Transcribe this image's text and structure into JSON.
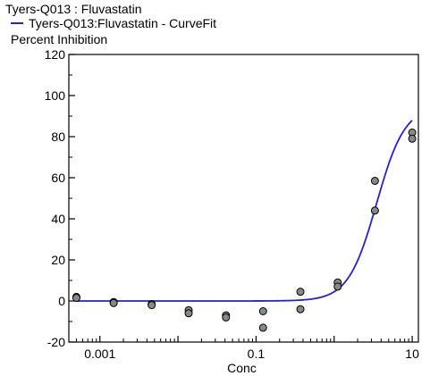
{
  "chart_data": {
    "type": "scatter",
    "title": "Tyers-Q013 : Fluvastatin",
    "ylabel": "Percent Inhibition",
    "xlabel": "Conc",
    "x_scale": "log",
    "xlim": [
      0.0004,
      12
    ],
    "ylim": [
      -20,
      120
    ],
    "x_ticks": [
      {
        "value": 0.001,
        "label": "0.001"
      },
      {
        "value": 0.1,
        "label": "0.1"
      },
      {
        "value": 10,
        "label": "10"
      }
    ],
    "y_ticks": [
      {
        "value": -20,
        "label": "-20"
      },
      {
        "value": 0,
        "label": "0"
      },
      {
        "value": 20,
        "label": "20"
      },
      {
        "value": 40,
        "label": "40"
      },
      {
        "value": 60,
        "label": "60"
      },
      {
        "value": 80,
        "label": "80"
      },
      {
        "value": 100,
        "label": "100"
      },
      {
        "value": 120,
        "label": "120"
      }
    ],
    "legend": {
      "placement": "top-left",
      "entries": [
        "Tyers-Q013:Fluvastatin - CurveFit"
      ]
    },
    "grid": false,
    "points_color": "#888888",
    "curve_color": "#2222dd",
    "points": [
      {
        "x": 0.0005,
        "y": 2
      },
      {
        "x": 0.0005,
        "y": 1.5
      },
      {
        "x": 0.0015,
        "y": -0.5
      },
      {
        "x": 0.0015,
        "y": -1
      },
      {
        "x": 0.0046,
        "y": -1.5
      },
      {
        "x": 0.0046,
        "y": -2
      },
      {
        "x": 0.0137,
        "y": -4.5
      },
      {
        "x": 0.0137,
        "y": -6
      },
      {
        "x": 0.0412,
        "y": -7
      },
      {
        "x": 0.0412,
        "y": -8
      },
      {
        "x": 0.123,
        "y": -5
      },
      {
        "x": 0.123,
        "y": -13
      },
      {
        "x": 0.37,
        "y": 4.5
      },
      {
        "x": 0.37,
        "y": -4
      },
      {
        "x": 1.11,
        "y": 9
      },
      {
        "x": 1.11,
        "y": 7
      },
      {
        "x": 3.33,
        "y": 58.5
      },
      {
        "x": 3.33,
        "y": 44
      },
      {
        "x": 10,
        "y": 82
      },
      {
        "x": 10,
        "y": 79
      }
    ],
    "series": [
      {
        "name": "Tyers-Q013:Fluvastatin - CurveFit",
        "type": "line",
        "x_start": 0.0005,
        "x_end": 10,
        "bottom": 0,
        "top": 95,
        "ec50": 3.5,
        "hill": 2.4
      }
    ]
  }
}
